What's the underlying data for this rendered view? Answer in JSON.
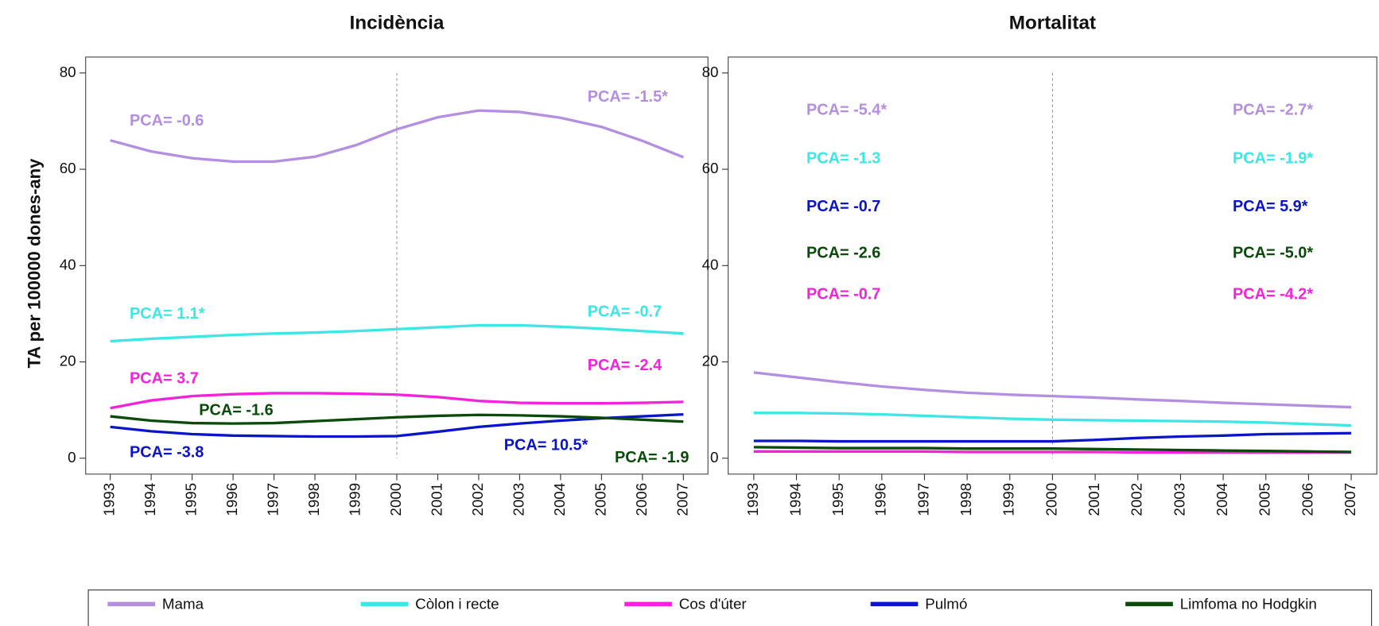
{
  "chart_data": [
    {
      "type": "line",
      "title": "Incidència",
      "ylabel": "TA per 100000 dones-any",
      "x": [
        1993,
        1994,
        1995,
        1996,
        1997,
        1998,
        1999,
        2000,
        2001,
        2002,
        2003,
        2004,
        2005,
        2006,
        2007
      ],
      "xlim": [
        1992.4,
        2007.6
      ],
      "xticks": [
        1993,
        1994,
        1995,
        1996,
        1997,
        1998,
        1999,
        2000,
        2001,
        2002,
        2003,
        2004,
        2005,
        2006,
        2007
      ],
      "ylim": [
        -3.3,
        83.3
      ],
      "yticks": [
        0,
        20,
        40,
        60,
        80
      ],
      "vline": 2000,
      "series": [
        {
          "name": "Mama",
          "color": "#b48ee0",
          "values": [
            66,
            63.7,
            62.3,
            61.6,
            61.6,
            62.6,
            65,
            68.3,
            70.8,
            72.2,
            71.9,
            70.7,
            68.8,
            65.9,
            62.5
          ]
        },
        {
          "name": "Còlon i recte",
          "color": "#3ee6e6",
          "values": [
            24.3,
            24.8,
            25.2,
            25.6,
            25.9,
            26.1,
            26.4,
            26.8,
            27.2,
            27.6,
            27.6,
            27.3,
            26.9,
            26.4,
            25.9
          ]
        },
        {
          "name": "Cos d'úter",
          "color": "#f522dc",
          "values": [
            10.4,
            12,
            12.9,
            13.3,
            13.5,
            13.5,
            13.4,
            13.2,
            12.7,
            11.9,
            11.5,
            11.4,
            11.4,
            11.5,
            11.7
          ]
        },
        {
          "name": "Pulmó",
          "color": "#0a14c8",
          "values": [
            6.5,
            5.6,
            5,
            4.7,
            4.6,
            4.5,
            4.5,
            4.6,
            5.5,
            6.5,
            7.2,
            7.8,
            8.3,
            8.7,
            9.1
          ]
        },
        {
          "name": "Limfoma no Hodgkin",
          "color": "#0a4a0a",
          "values": [
            8.7,
            7.8,
            7.3,
            7.2,
            7.3,
            7.7,
            8.1,
            8.5,
            8.8,
            9,
            8.9,
            8.7,
            8.4,
            8,
            7.6
          ]
        }
      ],
      "annotations": [
        {
          "text": "PCA= -0.6",
          "color": "#b48ee0"
        },
        {
          "text": "PCA= -1.5*",
          "color": "#b48ee0"
        },
        {
          "text": "PCA= 1.1*",
          "color": "#3ee6e6"
        },
        {
          "text": "PCA= -0.7",
          "color": "#3ee6e6"
        },
        {
          "text": "PCA= 3.7",
          "color": "#f522dc"
        },
        {
          "text": "PCA= -2.4",
          "color": "#f522dc"
        },
        {
          "text": "PCA= -1.6",
          "color": "#0a4a0a"
        },
        {
          "text": "PCA= -3.8",
          "color": "#0a14c8"
        },
        {
          "text": "PCA= 10.5*",
          "color": "#0a14c8"
        },
        {
          "text": "PCA= -1.9",
          "color": "#0a4a0a"
        }
      ]
    },
    {
      "type": "line",
      "title": "Mortalitat",
      "x": [
        1993,
        1994,
        1995,
        1996,
        1997,
        1998,
        1999,
        2000,
        2001,
        2002,
        2003,
        2004,
        2005,
        2006,
        2007
      ],
      "xlim": [
        1992.4,
        2007.6
      ],
      "xticks": [
        1993,
        1994,
        1995,
        1996,
        1997,
        1998,
        1999,
        2000,
        2001,
        2002,
        2003,
        2004,
        2005,
        2006,
        2007
      ],
      "ylim": [
        -3.3,
        83.3
      ],
      "yticks": [
        0,
        20,
        40,
        60,
        80
      ],
      "vline": 2000,
      "series": [
        {
          "color": "#b48ee0",
          "values": [
            17.8,
            16.8,
            15.8,
            14.9,
            14.2,
            13.6,
            13.2,
            12.9,
            12.6,
            12.2,
            11.9,
            11.5,
            11.2,
            10.9,
            10.6
          ]
        },
        {
          "color": "#3ee6e6",
          "values": [
            9.4,
            9.4,
            9.3,
            9.1,
            8.8,
            8.5,
            8.2,
            8,
            7.9,
            7.8,
            7.7,
            7.6,
            7.4,
            7.1,
            6.8
          ]
        },
        {
          "color": "#f522dc",
          "values": [
            1.4,
            1.4,
            1.4,
            1.4,
            1.4,
            1.3,
            1.3,
            1.3,
            1.3,
            1.2,
            1.2,
            1.2,
            1.2,
            1.2,
            1.2
          ]
        },
        {
          "color": "#0a14c8",
          "values": [
            3.6,
            3.6,
            3.5,
            3.5,
            3.5,
            3.5,
            3.5,
            3.5,
            3.8,
            4.2,
            4.5,
            4.7,
            5,
            5.1,
            5.2
          ]
        },
        {
          "color": "#0a4a0a",
          "values": [
            2.3,
            2.2,
            2.1,
            2.1,
            2.1,
            2,
            2,
            2,
            1.9,
            1.8,
            1.7,
            1.6,
            1.5,
            1.4,
            1.3
          ]
        }
      ],
      "annotations": [
        {
          "text": "PCA= -5.4*",
          "color": "#b48ee0"
        },
        {
          "text": "PCA= -1.3",
          "color": "#3ee6e6"
        },
        {
          "text": "PCA= -0.7",
          "color": "#0a14c8"
        },
        {
          "text": "PCA= -2.6",
          "color": "#0a4a0a"
        },
        {
          "text": "PCA= -0.7",
          "color": "#f522dc"
        },
        {
          "text": "PCA= -2.7*",
          "color": "#b48ee0"
        },
        {
          "text": "PCA= -1.9*",
          "color": "#3ee6e6"
        },
        {
          "text": "PCA= 5.9*",
          "color": "#0a14c8"
        },
        {
          "text": "PCA= -5.0*",
          "color": "#0a4a0a"
        },
        {
          "text": "PCA= -4.2*",
          "color": "#f522dc"
        }
      ]
    }
  ]
}
